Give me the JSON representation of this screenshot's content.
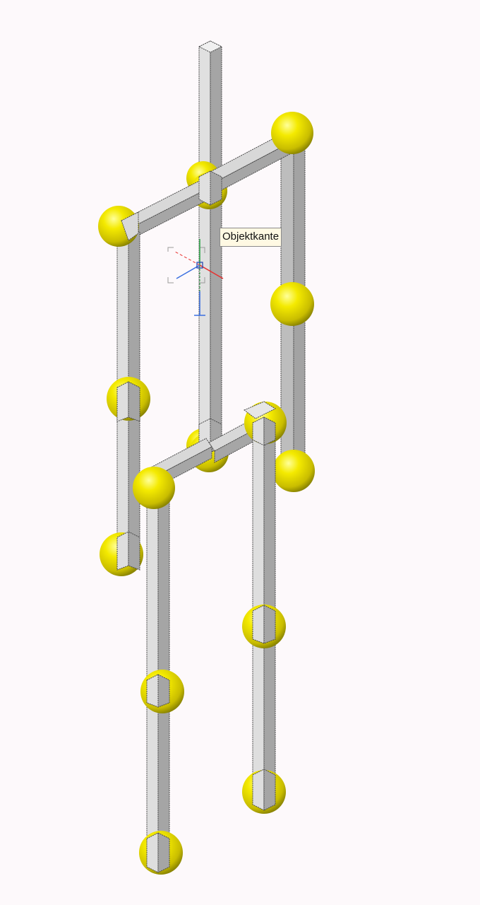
{
  "tooltip": {
    "text": "Objektkante"
  },
  "colors": {
    "background": "#fdf9fb",
    "beam_light": "#dcdcdc",
    "beam_mid": "#c4c4c4",
    "beam_dark": "#a7a7a7",
    "beam_edge": "#4a4a4a",
    "joint_sphere": "#f4ea00",
    "joint_dark": "#8a8400",
    "axis_x": "#e8312f",
    "axis_y": "#2fa84a",
    "axis_z": "#3a6fe0"
  },
  "icons": {
    "gizmo": "ucs-axis-gizmo-icon",
    "pick_box": "pick-box-icon"
  }
}
